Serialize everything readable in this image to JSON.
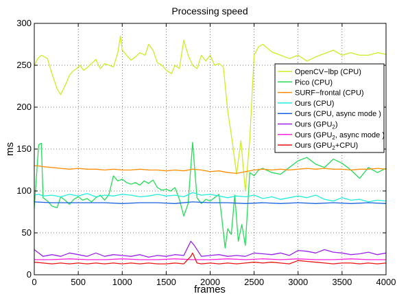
{
  "chart_data": {
    "type": "line",
    "title": "Processing speed",
    "xlabel": "frames",
    "ylabel": "ms",
    "xlim": [
      0,
      4000
    ],
    "ylim": [
      0,
      300
    ],
    "xticks": [
      0,
      500,
      1000,
      1500,
      2000,
      2500,
      3000,
      3500,
      4000
    ],
    "yticks": [
      0,
      50,
      100,
      150,
      200,
      250,
      300
    ],
    "grid": true,
    "legend": "top-right",
    "series": [
      {
        "name": "OpenCV−lbp (CPU)",
        "name_sub": "",
        "name_suffix": "",
        "color": "#ccee22",
        "x": [
          0,
          40,
          80,
          150,
          200,
          260,
          300,
          360,
          400,
          440,
          480,
          520,
          560,
          600,
          650,
          700,
          750,
          800,
          850,
          900,
          950,
          980,
          1000,
          1050,
          1100,
          1150,
          1200,
          1260,
          1300,
          1350,
          1400,
          1450,
          1500,
          1560,
          1600,
          1650,
          1700,
          1750,
          1800,
          1850,
          1900,
          1950,
          2000,
          2050,
          2100,
          2150,
          2200,
          2250,
          2300,
          2350,
          2400,
          2450,
          2500,
          2550,
          2600,
          2700,
          2800,
          2900,
          3000,
          3100,
          3200,
          3300,
          3400,
          3500,
          3600,
          3700,
          3800,
          3900,
          4000
        ],
        "y": [
          250,
          258,
          262,
          258,
          240,
          222,
          215,
          228,
          238,
          243,
          246,
          250,
          244,
          247,
          252,
          257,
          246,
          252,
          250,
          248,
          265,
          285,
          268,
          262,
          256,
          260,
          265,
          262,
          275,
          268,
          253,
          250,
          244,
          240,
          250,
          246,
          280,
          262,
          250,
          246,
          262,
          255,
          262,
          250,
          252,
          248,
          195,
          160,
          120,
          160,
          100,
          160,
          262,
          272,
          275,
          266,
          262,
          258,
          262,
          255,
          260,
          264,
          268,
          262,
          265,
          262,
          262,
          265,
          263
        ]
      },
      {
        "name": "Pico (CPU)",
        "name_sub": "",
        "name_suffix": "",
        "color": "#22dd55",
        "x": [
          0,
          50,
          80,
          100,
          150,
          200,
          260,
          300,
          360,
          400,
          450,
          500,
          550,
          600,
          650,
          700,
          750,
          800,
          850,
          900,
          950,
          1000,
          1050,
          1100,
          1150,
          1200,
          1250,
          1300,
          1350,
          1400,
          1450,
          1500,
          1550,
          1600,
          1650,
          1700,
          1750,
          1800,
          1850,
          1900,
          1950,
          2000,
          2050,
          2100,
          2130,
          2170,
          2200,
          2240,
          2280,
          2320,
          2360,
          2400,
          2450,
          2500,
          2550,
          2600,
          2700,
          2800,
          2900,
          3000,
          3100,
          3200,
          3300,
          3400,
          3500,
          3600,
          3700,
          3800,
          3900,
          4000
        ],
        "y": [
          80,
          155,
          157,
          92,
          88,
          82,
          80,
          93,
          88,
          84,
          90,
          93,
          89,
          91,
          87,
          92,
          95,
          89,
          96,
          118,
          112,
          114,
          110,
          108,
          110,
          107,
          112,
          109,
          113,
          104,
          101,
          102,
          100,
          104,
          90,
          70,
          85,
          158,
          92,
          85,
          90,
          88,
          92,
          96,
          70,
          32,
          55,
          48,
          95,
          40,
          60,
          35,
          122,
          118,
          125,
          127,
          122,
          120,
          128,
          136,
          140,
          132,
          128,
          138,
          133,
          125,
          115,
          128,
          122,
          127
        ]
      },
      {
        "name": "SURF−frontal (CPU)",
        "name_sub": "",
        "name_suffix": "",
        "color": "#ff8c00",
        "x": [
          0,
          40,
          100,
          200,
          300,
          400,
          500,
          600,
          700,
          800,
          900,
          1000,
          1100,
          1200,
          1300,
          1400,
          1500,
          1600,
          1700,
          1800,
          1900,
          2000,
          2100,
          2200,
          2300,
          2400,
          2500,
          2600,
          2700,
          2800,
          2900,
          3000,
          3100,
          3200,
          3300,
          3400,
          3500,
          3600,
          3700,
          3800,
          3900,
          4000
        ],
        "y": [
          130,
          130,
          129,
          128,
          127,
          126,
          127,
          126,
          126,
          125,
          126,
          125,
          125,
          126,
          125,
          125,
          124,
          125,
          124,
          126,
          125,
          123,
          124,
          122,
          121,
          123,
          125,
          126,
          125,
          126,
          125,
          126,
          127,
          126,
          127,
          126,
          126,
          125,
          126,
          126,
          127,
          126
        ]
      },
      {
        "name": "Ours (CPU)",
        "name_sub": "",
        "name_suffix": "",
        "color": "#22eedd",
        "x": [
          0,
          50,
          100,
          200,
          300,
          400,
          500,
          600,
          700,
          800,
          900,
          1000,
          1100,
          1200,
          1300,
          1400,
          1500,
          1600,
          1700,
          1800,
          1900,
          2000,
          2100,
          2200,
          2300,
          2400,
          2500,
          2600,
          2700,
          2800,
          2900,
          3000,
          3100,
          3200,
          3300,
          3400,
          3500,
          3600,
          3700,
          3800,
          3900,
          4000
        ],
        "y": [
          95,
          96,
          94,
          95,
          93,
          96,
          94,
          97,
          93,
          95,
          94,
          96,
          95,
          93,
          94,
          96,
          94,
          95,
          93,
          98,
          95,
          96,
          94,
          92,
          94,
          93,
          95,
          91,
          93,
          90,
          92,
          94,
          92,
          95,
          90,
          88,
          92,
          89,
          90,
          87,
          89,
          88
        ]
      },
      {
        "name": "Ours (CPU, async mode )",
        "name_sub": "",
        "name_suffix": "",
        "color": "#1560e0",
        "x": [
          0,
          200,
          400,
          600,
          800,
          1000,
          1200,
          1400,
          1600,
          1800,
          2000,
          2200,
          2400,
          2600,
          2800,
          3000,
          3200,
          3400,
          3600,
          3800,
          4000
        ],
        "y": [
          87,
          86,
          86,
          86,
          86,
          85,
          86,
          86,
          85,
          87,
          86,
          86,
          85,
          86,
          85,
          86,
          85,
          86,
          85,
          86,
          85
        ]
      },
      {
        "name": "Ours (GPU",
        "name_sub": "2",
        "name_suffix": ")",
        "color": "#9922ee",
        "x": [
          0,
          100,
          200,
          300,
          400,
          500,
          600,
          700,
          800,
          900,
          1000,
          1100,
          1200,
          1300,
          1400,
          1500,
          1600,
          1700,
          1780,
          1820,
          1900,
          2000,
          2100,
          2200,
          2300,
          2400,
          2500,
          2600,
          2700,
          2800,
          2900,
          3000,
          3100,
          3200,
          3300,
          3400,
          3500,
          3600,
          3700,
          3800,
          3900,
          4000
        ],
        "y": [
          30,
          22,
          24,
          22,
          26,
          24,
          22,
          26,
          22,
          24,
          23,
          22,
          24,
          21,
          23,
          22,
          24,
          23,
          40,
          35,
          22,
          23,
          24,
          22,
          23,
          22,
          26,
          25,
          24,
          26,
          23,
          29,
          28,
          26,
          30,
          27,
          26,
          24,
          25,
          27,
          24,
          26
        ]
      },
      {
        "name": "Ours (GPU",
        "name_sub": "2",
        "name_suffix": ", async mode )",
        "color": "#ff22dd",
        "x": [
          0,
          200,
          400,
          600,
          800,
          1000,
          1200,
          1400,
          1600,
          1800,
          2000,
          2200,
          2400,
          2600,
          2800,
          3000,
          3200,
          3400,
          3600,
          3800,
          4000
        ],
        "y": [
          18,
          18,
          19,
          18,
          18,
          19,
          18,
          18,
          19,
          18,
          18,
          19,
          18,
          19,
          18,
          19,
          18,
          18,
          19,
          18,
          18
        ]
      },
      {
        "name": "Ours (GPU",
        "name_sub": "2",
        "name_suffix": "+CPU)",
        "color": "#ee1111",
        "x": [
          0,
          100,
          200,
          300,
          400,
          500,
          600,
          700,
          800,
          900,
          1000,
          1100,
          1200,
          1300,
          1400,
          1500,
          1600,
          1700,
          1780,
          1800,
          1850,
          1900,
          2000,
          2100,
          2200,
          2300,
          2400,
          2500,
          2600,
          2700,
          2800,
          2900,
          3000,
          3100,
          3200,
          3300,
          3400,
          3500,
          3600,
          3700,
          3800,
          3900,
          4000
        ],
        "y": [
          15,
          14,
          13,
          14,
          13,
          14,
          13,
          14,
          13,
          14,
          13,
          14,
          13,
          14,
          13,
          13,
          14,
          13,
          22,
          26,
          14,
          13,
          14,
          13,
          14,
          13,
          14,
          15,
          14,
          15,
          14,
          13,
          17,
          16,
          15,
          14,
          13,
          14,
          14,
          13,
          14,
          13,
          14
        ]
      }
    ]
  }
}
